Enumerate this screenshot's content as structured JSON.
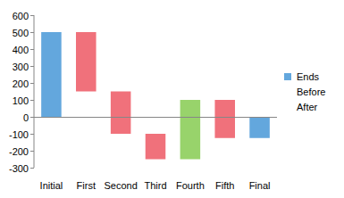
{
  "chart_data": {
    "type": "waterfall",
    "categories": [
      "Initial",
      "First",
      "Second",
      "Third",
      "Fourth",
      "Fifth",
      "Final"
    ],
    "series": [
      {
        "name": "Ends",
        "type": "bar",
        "color": "#63a7dd",
        "values": [
          500,
          null,
          null,
          null,
          null,
          null,
          -125
        ]
      },
      {
        "name": "Before",
        "type": "line",
        "line_style": "none",
        "values": [
          null,
          500,
          150,
          -100,
          -250,
          100,
          null
        ]
      },
      {
        "name": "After",
        "type": "line",
        "line_style": "none",
        "values": [
          null,
          150,
          -100,
          -250,
          100,
          -125,
          null
        ],
        "colors": [
          null,
          "#f0717b",
          "#f0717b",
          "#f0717b",
          "#98d36b",
          "#f0717b",
          null
        ]
      }
    ],
    "ylim": [
      -300,
      600
    ],
    "yticks": [
      -300,
      -200,
      -100,
      0,
      100,
      200,
      300,
      400,
      500,
      600
    ],
    "grid": false,
    "legend": "right"
  }
}
